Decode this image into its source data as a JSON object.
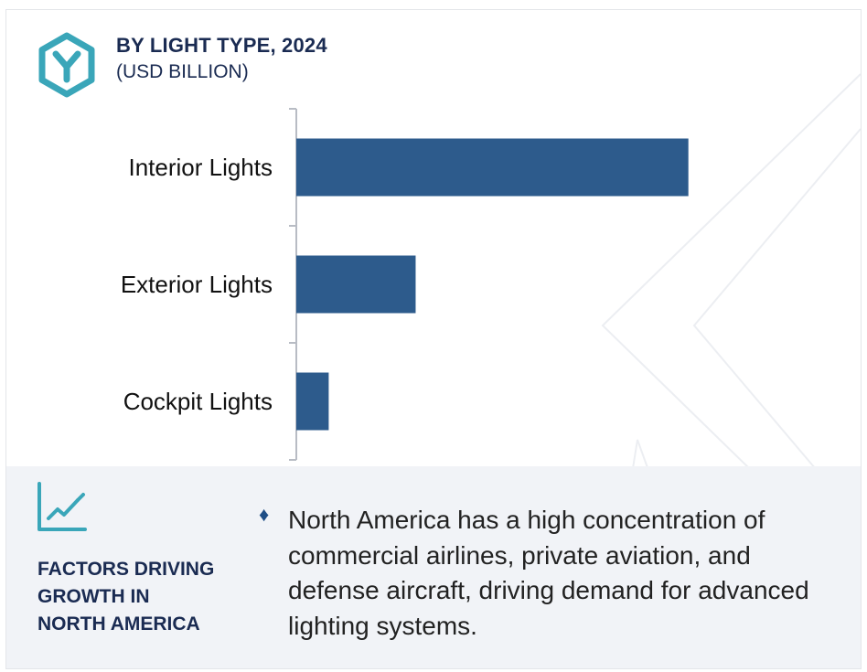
{
  "header": {
    "title": "BY LIGHT TYPE, 2024",
    "subtitle": "(USD BILLION)",
    "logo_icon": "y-hexagon-logo-icon"
  },
  "colors": {
    "bar": "#2d5b8c",
    "heading": "#1a2b52",
    "accent": "#3aa6b9",
    "panel_bg": "#f1f3f7"
  },
  "chart_data": {
    "type": "bar",
    "orientation": "horizontal",
    "categories": [
      "Interior Lights",
      "Exterior Lights",
      "Cockpit Lights"
    ],
    "values": [
      4.6,
      1.4,
      0.38
    ],
    "title": "BY LIGHT TYPE, 2024",
    "subtitle": "(USD BILLION)",
    "xlabel": "",
    "ylabel": "",
    "xlim": [
      0,
      9.4
    ],
    "grid": false,
    "legend": "none"
  },
  "factors": {
    "icon": "trend-chart-icon",
    "heading_lines": [
      "FACTORS DRIVING",
      "GROWTH IN",
      "NORTH AMERICA"
    ],
    "bullet_symbol": "♦",
    "bullet_text": "North America has a high concentration of commercial airlines, private aviation, and defense aircraft, driving demand for advanced lighting systems."
  }
}
